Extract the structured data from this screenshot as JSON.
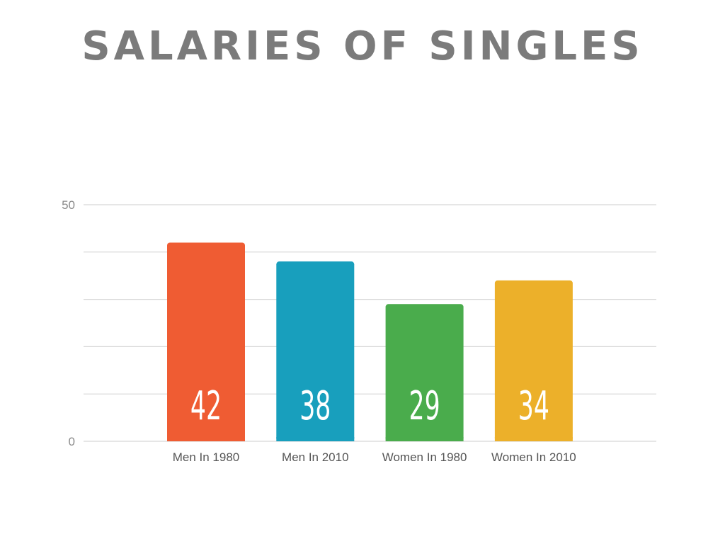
{
  "title": "SALARIES OF SINGLES",
  "chart_data": {
    "type": "bar",
    "title": "SALARIES OF SINGLES",
    "categories": [
      "Men In 1980",
      "Men In 2010",
      "Women In 1980",
      "Women In 2010"
    ],
    "values": [
      42,
      38,
      29,
      34
    ],
    "colors": [
      "#ef5c33",
      "#189fbd",
      "#4aac4c",
      "#ecb02a"
    ],
    "ylim": [
      0,
      50
    ],
    "ytick_labels": [
      "0",
      "50"
    ],
    "gridlines": [
      0,
      10,
      20,
      30,
      40,
      50
    ],
    "grid": true,
    "xlabel": "",
    "ylabel": "",
    "legend": false
  }
}
